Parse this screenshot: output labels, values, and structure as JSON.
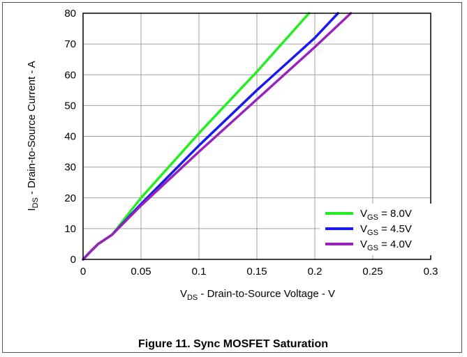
{
  "chart_data": {
    "type": "line",
    "title": "",
    "caption": "Figure 11. Sync MOSFET Saturation",
    "xlabel": {
      "prefix": "V",
      "sub": "DS",
      "suffix": " - Drain-to-Source Voltage - V"
    },
    "ylabel": {
      "prefix": "I",
      "sub": "DS",
      "suffix": " - Drain-to-Source Current - A"
    },
    "xlim": [
      0,
      0.3
    ],
    "ylim": [
      0,
      80
    ],
    "xticks": [
      0,
      0.05,
      0.1,
      0.15,
      0.2,
      0.25,
      0.3
    ],
    "xtick_labels": [
      "0",
      "0.05",
      "0.1",
      "0.15",
      "0.2",
      "0.25",
      "0.3"
    ],
    "yticks": [
      0,
      10,
      20,
      30,
      40,
      50,
      60,
      70,
      80
    ],
    "ytick_labels": [
      "0",
      "10",
      "20",
      "30",
      "40",
      "50",
      "60",
      "70",
      "80"
    ],
    "grid": true,
    "legend_position": "bottom-right",
    "series": [
      {
        "name_prefix": "V",
        "name_sub": "GS",
        "name_suffix": " = 8.0V",
        "color": "#22ee22",
        "x": [
          0,
          0.005,
          0.013,
          0.025,
          0.05,
          0.1,
          0.15,
          0.195
        ],
        "y": [
          0,
          2,
          5,
          8,
          20,
          41,
          61,
          80
        ]
      },
      {
        "name_prefix": "V",
        "name_sub": "GS",
        "name_suffix": " = 4.5V",
        "color": "#1a1aee",
        "x": [
          0,
          0.005,
          0.013,
          0.025,
          0.05,
          0.1,
          0.15,
          0.2,
          0.22
        ],
        "y": [
          0,
          2,
          5,
          8,
          18,
          37,
          55,
          72,
          80
        ]
      },
      {
        "name_prefix": "V",
        "name_sub": "GS",
        "name_suffix": " = 4.0V",
        "color": "#9922bb",
        "x": [
          0,
          0.005,
          0.013,
          0.025,
          0.05,
          0.1,
          0.15,
          0.2,
          0.231
        ],
        "y": [
          0,
          2,
          5,
          8,
          17.5,
          35,
          52,
          69,
          80
        ]
      }
    ]
  }
}
